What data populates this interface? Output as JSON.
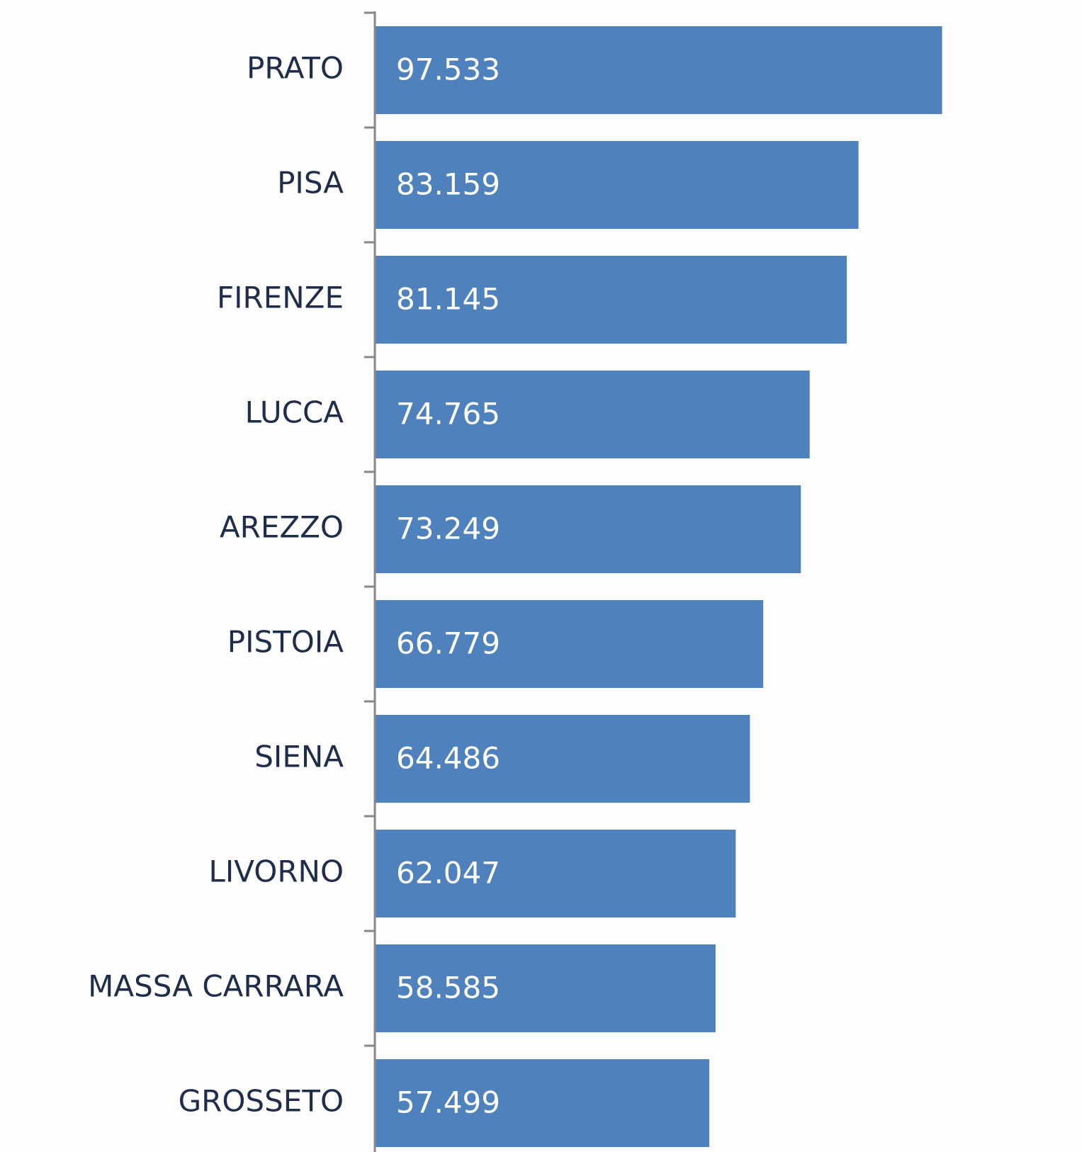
{
  "chart_data": {
    "type": "bar",
    "orientation": "horizontal",
    "categories": [
      "PRATO",
      "PISA",
      "FIRENZE",
      "LUCCA",
      "AREZZO",
      "PISTOIA",
      "SIENA",
      "LIVORNO",
      "MASSA CARRARA",
      "GROSSETO"
    ],
    "values": [
      97533,
      83159,
      81145,
      74765,
      73249,
      66779,
      64486,
      62047,
      58585,
      57499
    ],
    "value_labels": [
      "97.533",
      "83.159",
      "81.145",
      "74.765",
      "73.249",
      "66.779",
      "64.486",
      "62.047",
      "58.585",
      "57.499"
    ],
    "color": "#4f81bd",
    "xlim": [
      0,
      120000
    ]
  }
}
